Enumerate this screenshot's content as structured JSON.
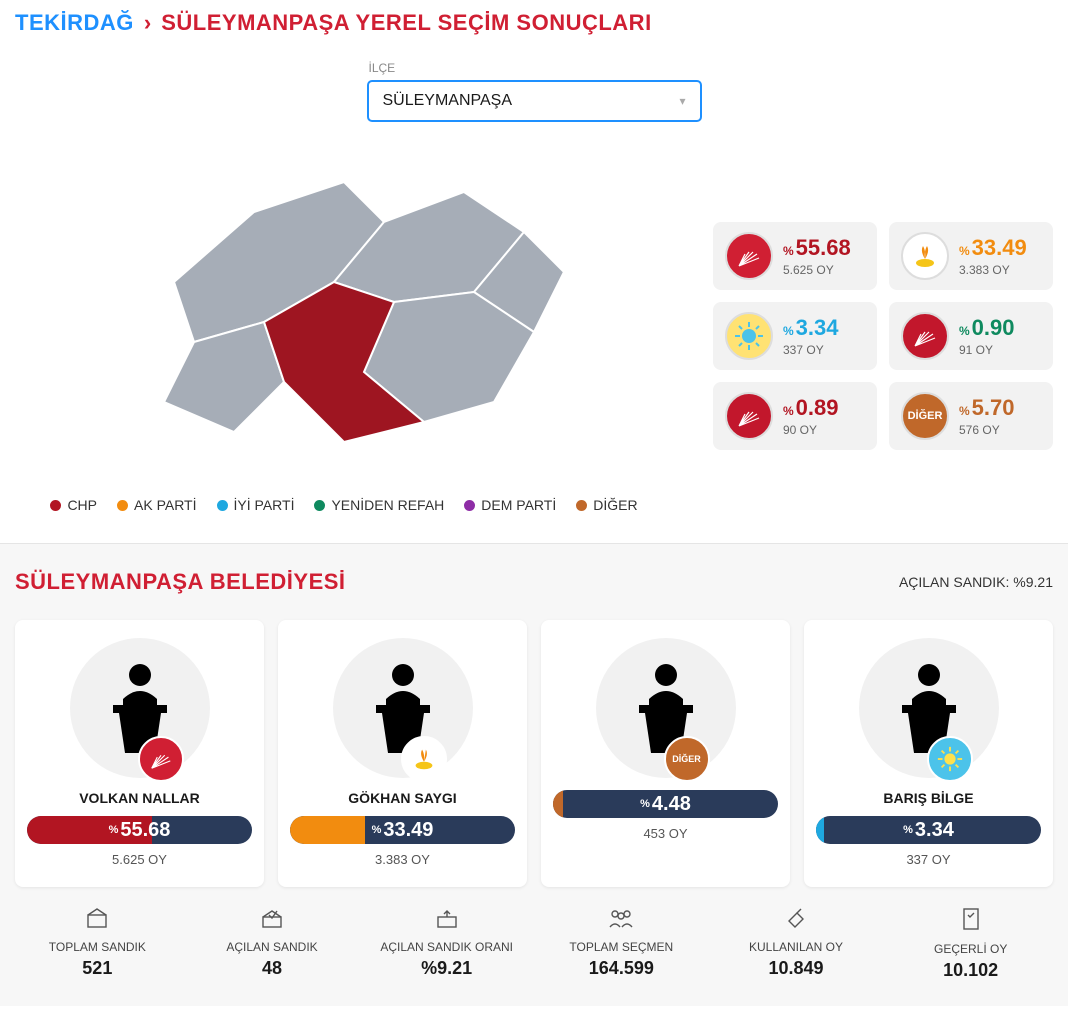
{
  "breadcrumb": {
    "province": "TEKİRDAĞ",
    "title": "SÜLEYMANPAŞA YEREL SEÇİM SONUÇLARI"
  },
  "selector": {
    "label": "İLÇE",
    "value": "SÜLEYMANPAŞA"
  },
  "legend": [
    {
      "label": "CHP",
      "color": "#b21522"
    },
    {
      "label": "AK PARTİ",
      "color": "#f28c0f"
    },
    {
      "label": "İYİ PARTİ",
      "color": "#1ea8e0"
    },
    {
      "label": "YENİDEN REFAH",
      "color": "#0f8a5f"
    },
    {
      "label": "DEM PARTİ",
      "color": "#8e2da6"
    },
    {
      "label": "DİĞER",
      "color": "#c0682a"
    }
  ],
  "map": {
    "base_color": "#a6adb7",
    "highlight_color": "#9e1521",
    "stroke": "#ffffff"
  },
  "party_results": [
    {
      "pct": "55.68",
      "votes": "5.625 OY",
      "color": "#b21522",
      "logo_bg": "#d01f33",
      "logo_text": ""
    },
    {
      "pct": "33.49",
      "votes": "3.383 OY",
      "color": "#f28c0f",
      "logo_bg": "#ffffff",
      "logo_text": ""
    },
    {
      "pct": "3.34",
      "votes": "337 OY",
      "color": "#1ea8e0",
      "logo_bg": "#ffe273",
      "logo_text": ""
    },
    {
      "pct": "0.90",
      "votes": "91 OY",
      "color": "#0f8a5f",
      "logo_bg": "#c2172c",
      "logo_text": ""
    },
    {
      "pct": "0.89",
      "votes": "90 OY",
      "color": "#b21522",
      "logo_bg": "#c2172c",
      "logo_text": ""
    },
    {
      "pct": "5.70",
      "votes": "576 OY",
      "color": "#c0682a",
      "logo_bg": "#c0682a",
      "logo_text": "DİĞER"
    }
  ],
  "muni": {
    "title": "SÜLEYMANPAŞA BELEDİYESİ",
    "opened_text": "AÇILAN SANDIK: %9.21"
  },
  "candidates": [
    {
      "name": "VOLKAN NALLAR",
      "pct": "55.68",
      "votes": "5.625 OY",
      "bar_color": "#b21522",
      "bar_pct": 55.68,
      "badge_bg": "#d01f33",
      "badge_text": ""
    },
    {
      "name": "GÖKHAN SAYGI",
      "pct": "33.49",
      "votes": "3.383 OY",
      "bar_color": "#f28c0f",
      "bar_pct": 33.49,
      "badge_bg": "#ffffff",
      "badge_text": ""
    },
    {
      "name": "",
      "pct": "4.48",
      "votes": "453 OY",
      "bar_color": "#c0682a",
      "bar_pct": 4.48,
      "badge_bg": "#c0682a",
      "badge_text": "DİĞER"
    },
    {
      "name": "BARIŞ BİLGE",
      "pct": "3.34",
      "votes": "337 OY",
      "bar_color": "#1ea8e0",
      "bar_pct": 3.34,
      "badge_bg": "#4cc3ea",
      "badge_text": ""
    }
  ],
  "stats": [
    {
      "label": "TOPLAM SANDIK",
      "value": "521"
    },
    {
      "label": "AÇILAN SANDIK",
      "value": "48"
    },
    {
      "label": "AÇILAN SANDIK ORANI",
      "value": "%9.21"
    },
    {
      "label": "TOPLAM SEÇMEN",
      "value": "164.599"
    },
    {
      "label": "KULLANILAN OY",
      "value": "10.849"
    },
    {
      "label": "GEÇERLİ OY",
      "value": "10.102"
    }
  ]
}
